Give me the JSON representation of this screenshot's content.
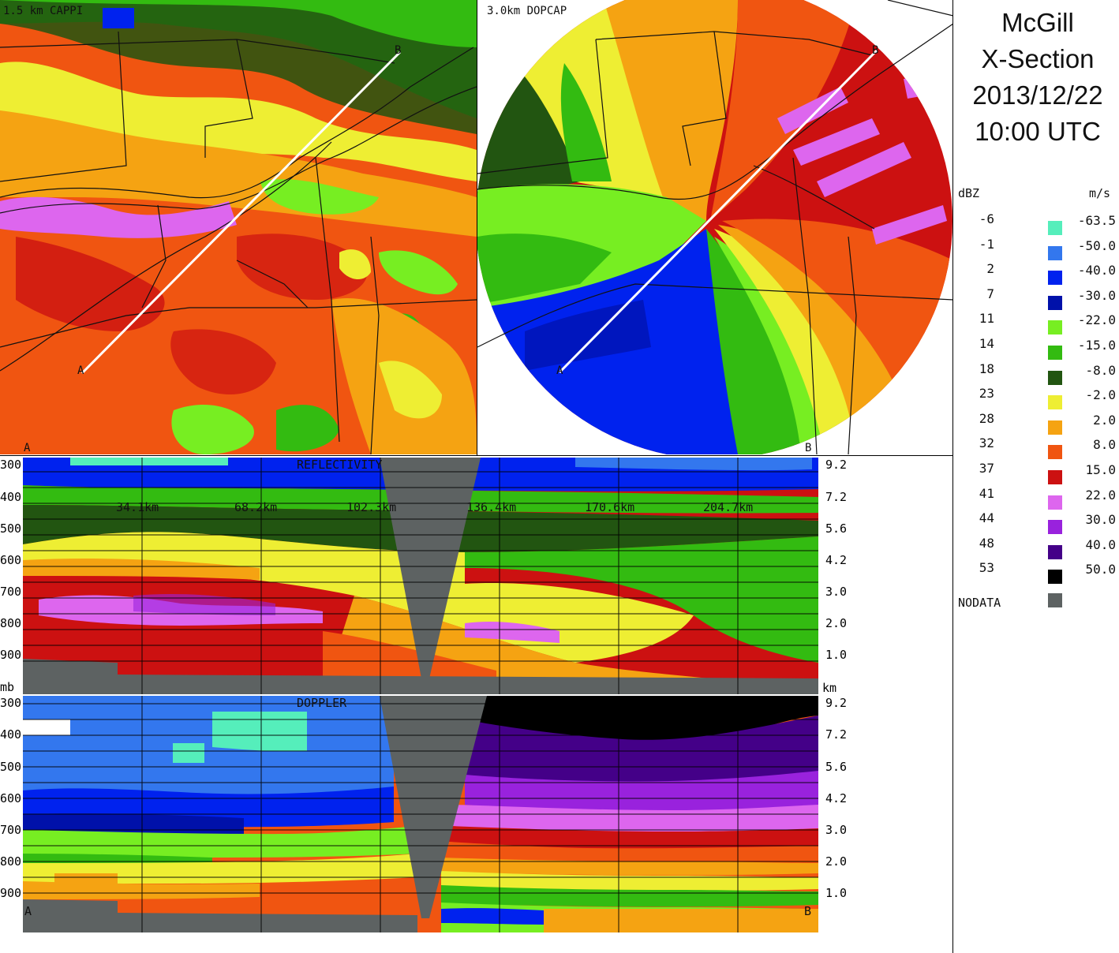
{
  "title_block": {
    "line1": "McGill",
    "line2": "X-Section",
    "line3": "2013/12/22",
    "line4": "10:00 UTC"
  },
  "panels": {
    "cappi_label": "1.5 km CAPPI",
    "dopcap_label": "3.0km DOPCAP",
    "section_start": "A",
    "section_end": "B"
  },
  "xsection": {
    "reflectivity_label": "REFLECTIVITY",
    "doppler_label": "DOPPLER",
    "pressure_unit": "mb",
    "height_unit": "km",
    "pressure_ticks": [
      "300",
      "400",
      "500",
      "600",
      "700",
      "800",
      "900"
    ],
    "height_ticks": [
      "9.2",
      "7.2",
      "5.6",
      "4.2",
      "3.0",
      "2.0",
      "1.0"
    ],
    "distance_ticks": [
      "34.1km",
      "68.2km",
      "102.3km",
      "136.4km",
      "170.6km",
      "204.7km"
    ]
  },
  "legend": {
    "dbz_header": "dBZ",
    "ms_header": "m/s",
    "dbz_values": [
      "-6",
      "-1",
      "2",
      "7",
      "11",
      "14",
      "18",
      "23",
      "28",
      "32",
      "37",
      "41",
      "44",
      "48",
      "53"
    ],
    "ms_values": [
      "-63.5",
      "-50.0",
      "-40.0",
      "-30.0",
      "-22.0",
      "-15.0",
      "-8.0",
      "-2.0",
      "2.0",
      "8.0",
      "15.0",
      "22.0",
      "30.0",
      "40.0",
      "50.0"
    ],
    "colors": [
      "#55eebb",
      "#3377ee",
      "#0022ee",
      "#0011aa",
      "#77ee22",
      "#33bb11",
      "#225511",
      "#eeee33",
      "#f5a312",
      "#f05511",
      "#cc1111",
      "#dd66ee",
      "#9922dd",
      "#440088",
      "#000000"
    ],
    "nodata_label": "NODATA",
    "nodata_color": "#5d6262"
  }
}
